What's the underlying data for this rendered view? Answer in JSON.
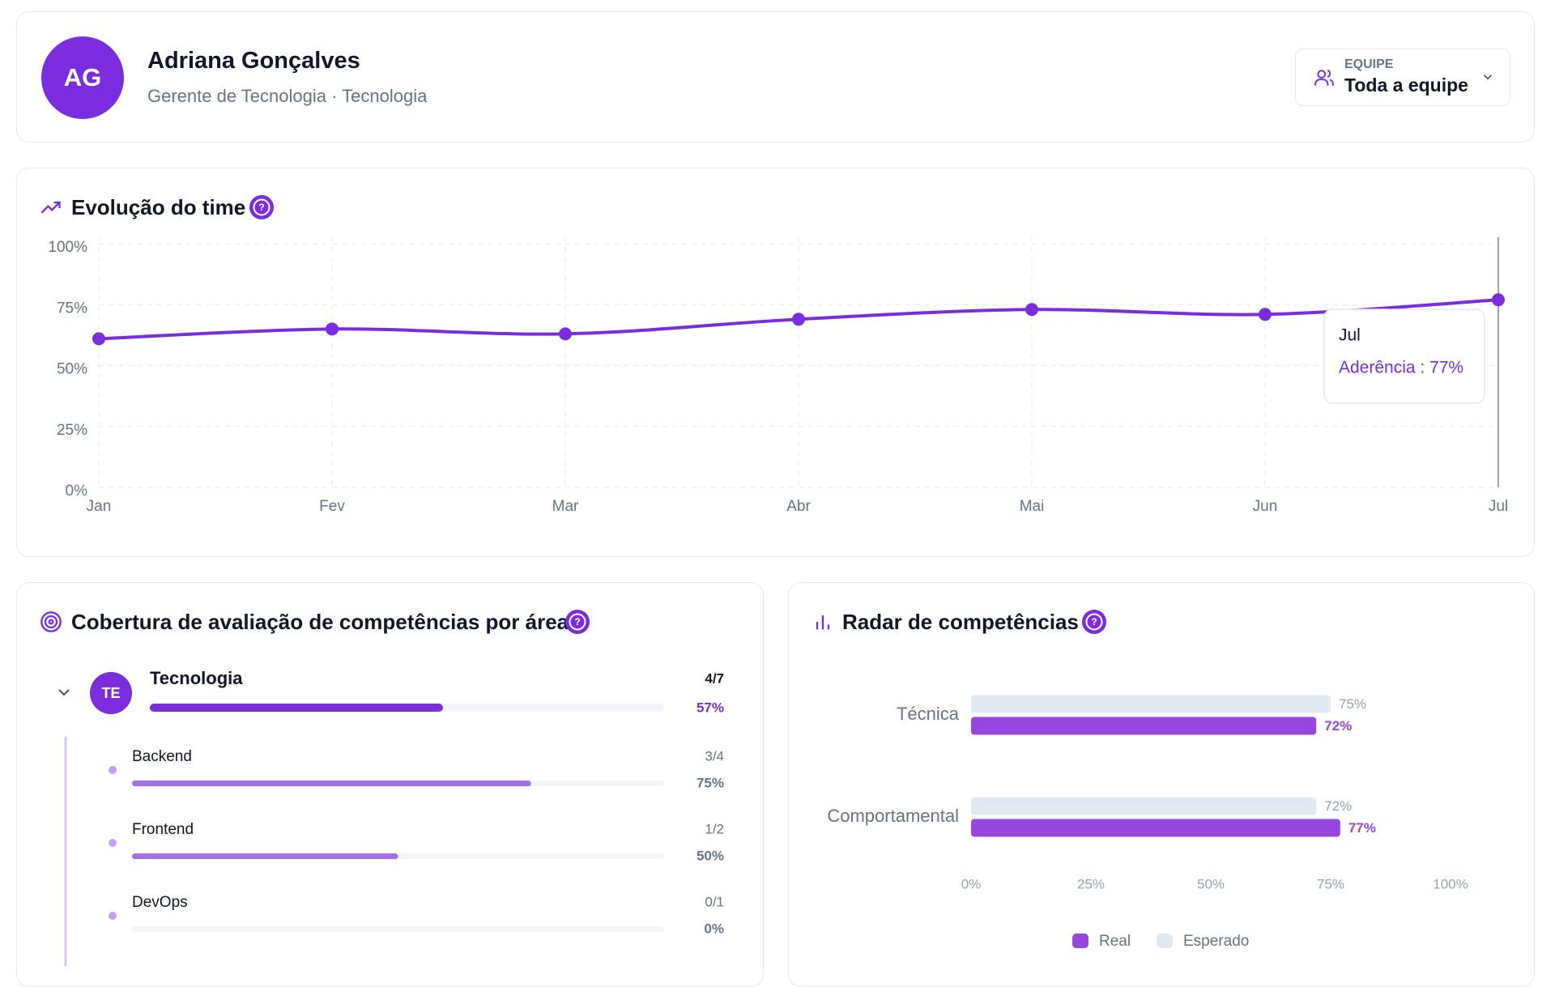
{
  "header": {
    "avatar": "AG",
    "name": "Adriana Gonçalves",
    "subtitle": "Gerente de Tecnologia · Tecnologia",
    "filter_label": "EQUIPE",
    "filter_value": "Toda a equipe"
  },
  "chart_data": [
    {
      "type": "line",
      "title": "Evolução do time",
      "categories": [
        "Jan",
        "Fev",
        "Mar",
        "Abr",
        "Mai",
        "Jun",
        "Jul"
      ],
      "series": [
        {
          "name": "Aderência",
          "color": "#7b2cdd",
          "values": [
            61,
            65,
            63,
            69,
            73,
            71,
            77
          ]
        }
      ],
      "ylim": [
        0,
        100
      ],
      "yticks": [
        {
          "value": 0,
          "label": "0%"
        },
        {
          "value": 25,
          "label": "25%"
        },
        {
          "value": 50,
          "label": "50%"
        },
        {
          "value": 75,
          "label": "75%"
        },
        {
          "value": 100,
          "label": "100%"
        }
      ],
      "grid": true,
      "tooltip": {
        "text": "Aderência : 77%"
      }
    },
    {
      "type": "hbar",
      "title": "Radar de competências",
      "categories": [
        "Técnica",
        "Comportamental"
      ],
      "series": [
        {
          "name": "Real",
          "color": "#9747e0",
          "values": [
            72,
            77
          ],
          "value_labels": [
            "72%",
            "77%"
          ]
        },
        {
          "name": "Esperado",
          "color": "#e2e8f0",
          "values": [
            75,
            72
          ],
          "value_labels": [
            "75%",
            "72%"
          ]
        }
      ],
      "xlim": [
        0,
        100
      ],
      "xticks": [
        {
          "value": 0,
          "label": "0%"
        },
        {
          "value": 25,
          "label": "25%"
        },
        {
          "value": 50,
          "label": "50%"
        },
        {
          "value": 75,
          "label": "75%"
        },
        {
          "value": 100,
          "label": "100%"
        }
      ],
      "legend": "bottom"
    }
  ],
  "coverage": {
    "title": "Cobertura de avaliação de competências por área",
    "area": {
      "initials": "TE",
      "name": "Tecnologia",
      "ratio": "4/7",
      "percent": 57,
      "percent_label": "57%"
    },
    "items": [
      {
        "name": "Backend",
        "ratio": "3/4",
        "percent": 75,
        "percent_label": "75%"
      },
      {
        "name": "Frontend",
        "ratio": "1/2",
        "percent": 50,
        "percent_label": "50%"
      },
      {
        "name": "DevOps",
        "ratio": "0/1",
        "percent": 0,
        "percent_label": "0%"
      }
    ]
  }
}
